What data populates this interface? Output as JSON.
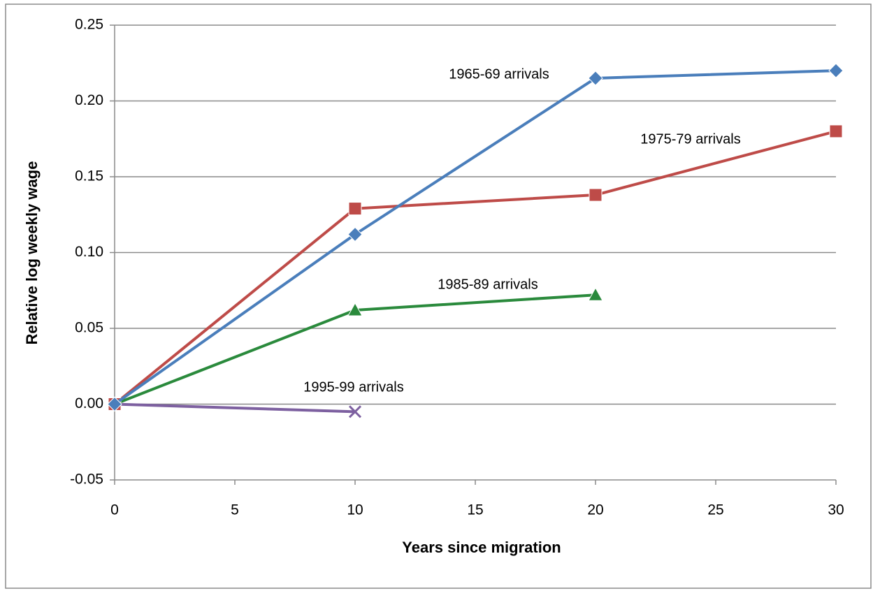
{
  "chart_data": {
    "type": "line",
    "xlabel": "Years since migration",
    "ylabel": "Relative log weekly wage",
    "xlim": [
      0,
      30
    ],
    "xticks": [
      0,
      5,
      10,
      15,
      20,
      25,
      30
    ],
    "ylim": [
      -0.05,
      0.25
    ],
    "yticks": [
      {
        "value": -0.05,
        "label": "-0.05"
      },
      {
        "value": 0,
        "label": "0.00"
      },
      0.05,
      {
        "value": 0.1,
        "label": "0.10"
      },
      0.15,
      {
        "value": 0.2,
        "label": "0.20"
      },
      0.25
    ],
    "grid": true,
    "series": [
      {
        "name": "1965-69 arrivals",
        "color": "#4a7ebb",
        "marker": "diamond",
        "x": [
          0,
          10,
          20,
          30
        ],
        "values": [
          0,
          0.112,
          0.215,
          0.22
        ]
      },
      {
        "name": "1975-79 arrivals",
        "color": "#be4b48",
        "marker": "square",
        "x": [
          0,
          10,
          20,
          30
        ],
        "values": [
          0,
          0.129,
          0.138,
          0.18
        ]
      },
      {
        "name": "1985-89 arrivals",
        "color": "#2a8a3c",
        "marker": "triangle",
        "x": [
          0,
          10,
          20
        ],
        "values": [
          0,
          0.062,
          0.072
        ]
      },
      {
        "name": "1995-99 arrivals",
        "color": "#7d60a0",
        "marker": "x",
        "x": [
          0,
          10
        ],
        "values": [
          0,
          -0.005
        ]
      }
    ]
  }
}
